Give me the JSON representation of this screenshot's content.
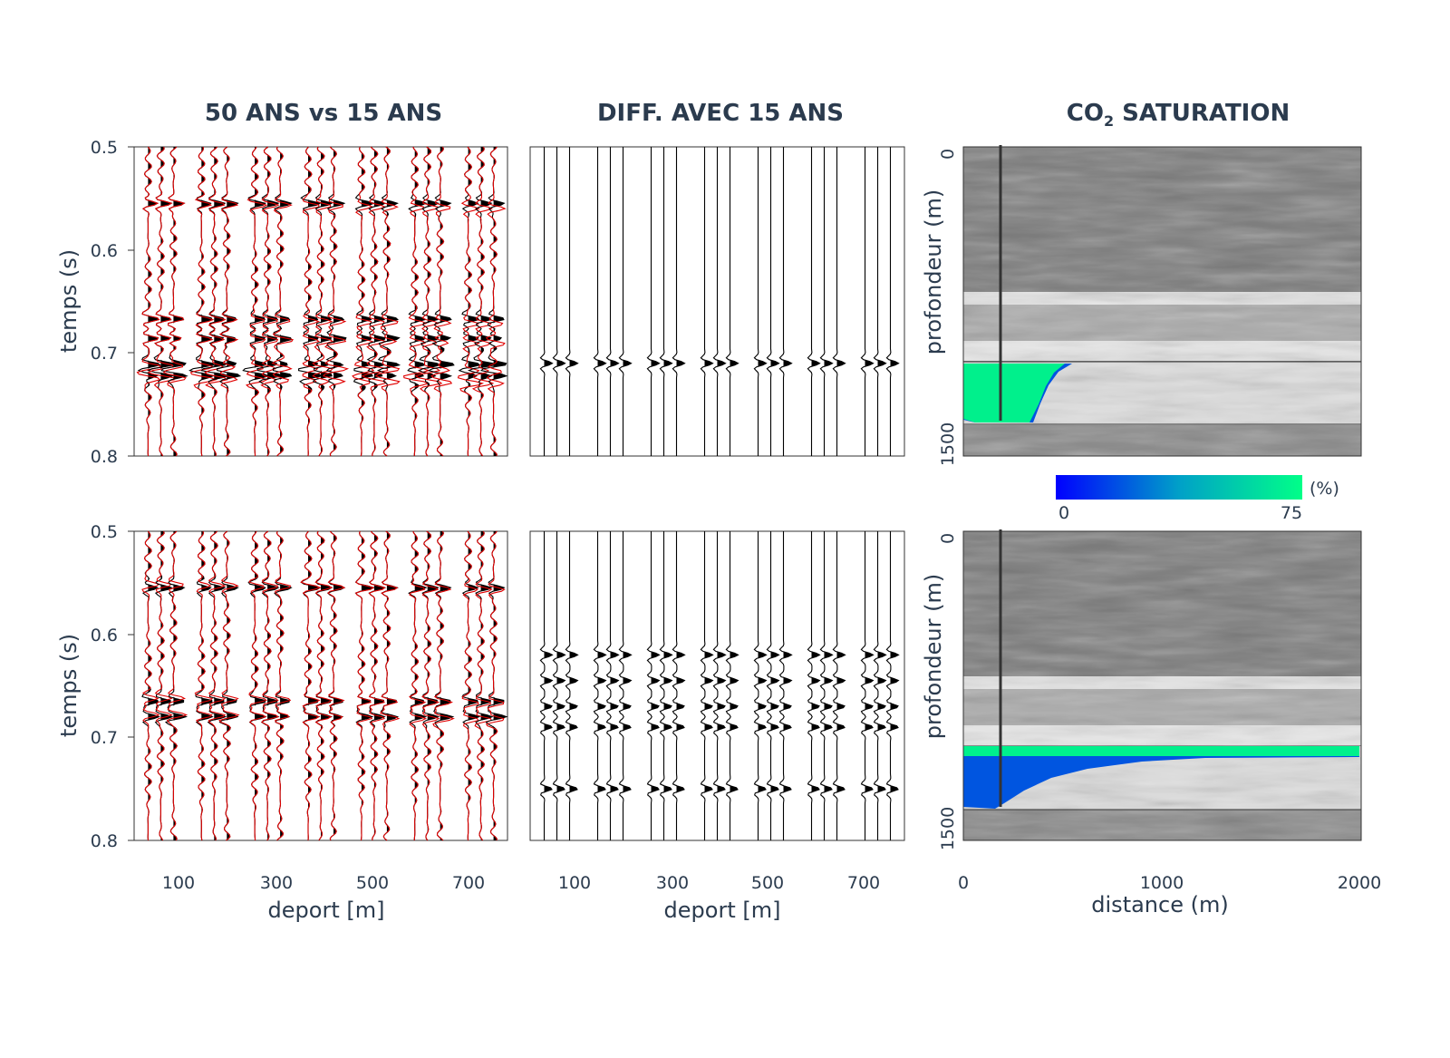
{
  "titles": {
    "col1": "50 ANS vs 15 ANS",
    "col2": "DIFF. AVEC 15 ANS",
    "col3_prefix": "CO",
    "col3_sub": "2",
    "col3_suffix": " SATURATION"
  },
  "colorbar": {
    "min_label": "0",
    "max_label": "75",
    "unit": "(%)",
    "colors": [
      "#0000ff",
      "#00cc99",
      "#00ff88"
    ]
  },
  "chart_data": [
    {
      "type": "line",
      "panel": "top-left",
      "title": "50 ANS vs 15 ANS",
      "ylabel": "temps (s)",
      "ylim": [
        0.8,
        0.5
      ],
      "yticks": [
        "0.5",
        "0.6",
        "0.7",
        "0.8"
      ],
      "xlim": [
        50,
        750
      ],
      "series": [
        {
          "color": "#000000",
          "offsets": [
            100,
            200,
            300,
            400,
            500,
            600,
            700
          ],
          "strong_events_s": [
            0.555,
            0.667,
            0.686,
            0.711,
            0.722
          ]
        },
        {
          "color": "#e00000",
          "offsets": [
            100,
            200,
            300,
            400,
            500,
            600,
            700
          ],
          "strong_events_s": [
            0.555,
            0.667,
            0.686,
            0.713,
            0.725
          ]
        }
      ]
    },
    {
      "type": "line",
      "panel": "top-middle",
      "title": "DIFF. AVEC 15 ANS",
      "ylim": [
        0.8,
        0.5
      ],
      "xlim": [
        50,
        750
      ],
      "series": [
        {
          "color": "#000000",
          "offsets": [
            100,
            200,
            300,
            400,
            500,
            600,
            700
          ],
          "events_s": [
            0.71
          ]
        }
      ]
    },
    {
      "type": "heatmap",
      "panel": "top-right",
      "title": "CO2 SATURATION",
      "ylabel": "profondeur (m)",
      "yticks": [
        "0",
        "1500"
      ],
      "ylim": [
        1500,
        0
      ],
      "xlim": [
        0,
        2000
      ],
      "well_x_m": 200,
      "plume_extent_m": 550,
      "saturation_range_pct": [
        0,
        75
      ]
    },
    {
      "type": "line",
      "panel": "bottom-left",
      "ylabel": "temps (s)",
      "xlabel": "deport [m]",
      "ylim": [
        0.8,
        0.5
      ],
      "yticks": [
        "0.5",
        "0.6",
        "0.7",
        "0.8"
      ],
      "xticks": [
        "100",
        "300",
        "500",
        "700"
      ],
      "xlim": [
        50,
        750
      ],
      "series": [
        {
          "color": "#000000",
          "offsets": [
            100,
            200,
            300,
            400,
            500,
            600,
            700
          ],
          "strong_events_s": [
            0.555,
            0.665,
            0.68
          ]
        },
        {
          "color": "#e00000",
          "offsets": [
            100,
            200,
            300,
            400,
            500,
            600,
            700
          ],
          "strong_events_s": [
            0.552,
            0.662,
            0.678
          ]
        }
      ]
    },
    {
      "type": "line",
      "panel": "bottom-middle",
      "xlabel": "deport [m]",
      "ylim": [
        0.8,
        0.5
      ],
      "xticks": [
        "100",
        "300",
        "500",
        "700"
      ],
      "xlim": [
        50,
        750
      ],
      "series": [
        {
          "color": "#000000",
          "offsets": [
            100,
            200,
            300,
            400,
            500,
            600,
            700
          ],
          "events_s": [
            0.62,
            0.645,
            0.67,
            0.69,
            0.75
          ]
        }
      ]
    },
    {
      "type": "heatmap",
      "panel": "bottom-right",
      "ylabel": "profondeur (m)",
      "xlabel": "distance (m)",
      "yticks": [
        "0",
        "1500"
      ],
      "xticks": [
        "0",
        "1000",
        "2000"
      ],
      "ylim": [
        1500,
        0
      ],
      "xlim": [
        0,
        2000
      ],
      "well_x_m": 200,
      "plume_extent_m": 2000,
      "saturation_range_pct": [
        0,
        75
      ]
    }
  ]
}
